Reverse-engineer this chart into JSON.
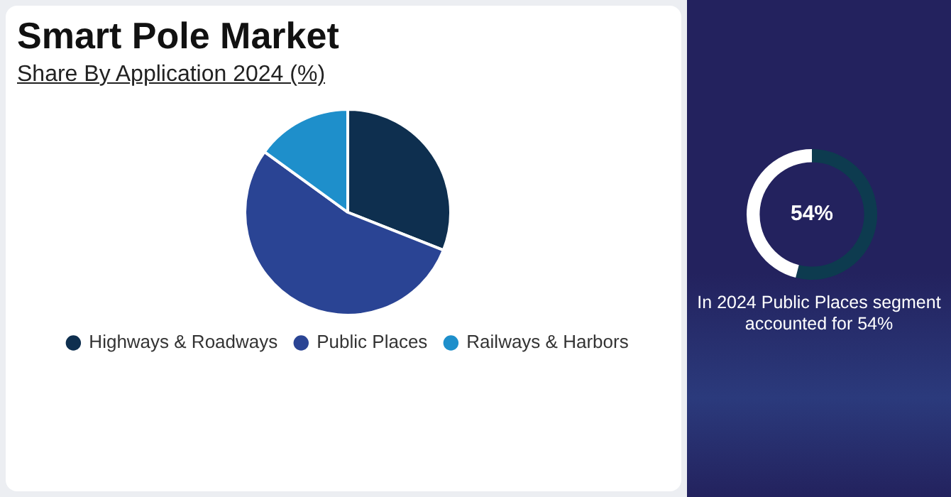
{
  "chart_data": [
    {
      "type": "pie",
      "title": "Smart Pole Market",
      "subtitle": "Share By Application 2024 (%)",
      "categories": [
        "Highways & Roadways",
        "Public Places",
        "Railways & Harbors"
      ],
      "values": [
        31,
        54,
        15
      ],
      "colors": [
        "#0e2f4f",
        "#2a4494",
        "#1e8fcb"
      ],
      "legend": "bottom"
    },
    {
      "type": "donut",
      "categories": [
        null,
        null
      ],
      "values": [
        54,
        46
      ],
      "colors": [
        "#0d3b4f",
        "#ffffff"
      ],
      "value_labels": [
        "54%",
        null
      ],
      "annotations": [
        "In 2024 Public Places segment accounted for 54%"
      ]
    }
  ]
}
